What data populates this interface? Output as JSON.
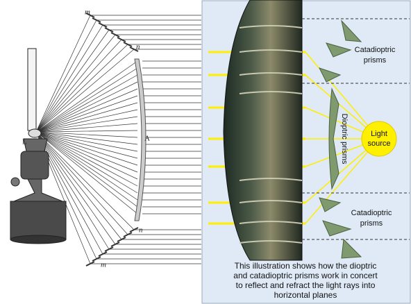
{
  "engraving": {
    "labels": [
      "m",
      "n",
      "L",
      "A",
      "n",
      "m"
    ]
  },
  "panel": {
    "upper_label": [
      "Catadioptric",
      "prisms"
    ],
    "middle_label": "Dioptric prisms",
    "source_label": [
      "Light",
      "source"
    ],
    "lower_label": [
      "Catadioptric",
      "prisms"
    ],
    "caption": [
      "This illustration shows how the dioptric",
      "and catadioptric prisms work in concert",
      "to reflect and refract the light rays into",
      "horizontal planes"
    ]
  }
}
